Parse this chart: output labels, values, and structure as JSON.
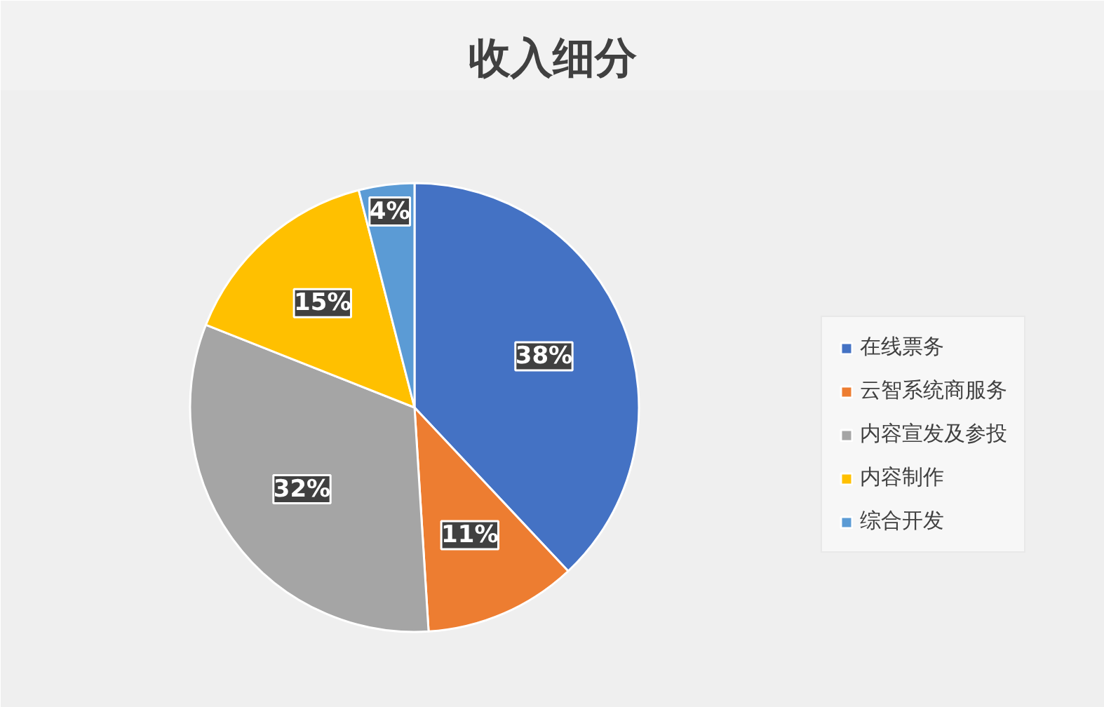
{
  "chart_data": {
    "type": "pie",
    "title": "收入细分",
    "categories": [
      "在线票务",
      "云智系统商服务",
      "内容宣发及参投",
      "内容制作",
      "综合开发"
    ],
    "values": [
      38,
      11,
      32,
      15,
      4
    ],
    "colors": [
      "#4472c4",
      "#ed7d31",
      "#a5a5a5",
      "#ffc000",
      "#5b9bd5"
    ],
    "value_labels": [
      "38%",
      "11%",
      "32%",
      "15%",
      "4%"
    ],
    "legend": "right"
  }
}
